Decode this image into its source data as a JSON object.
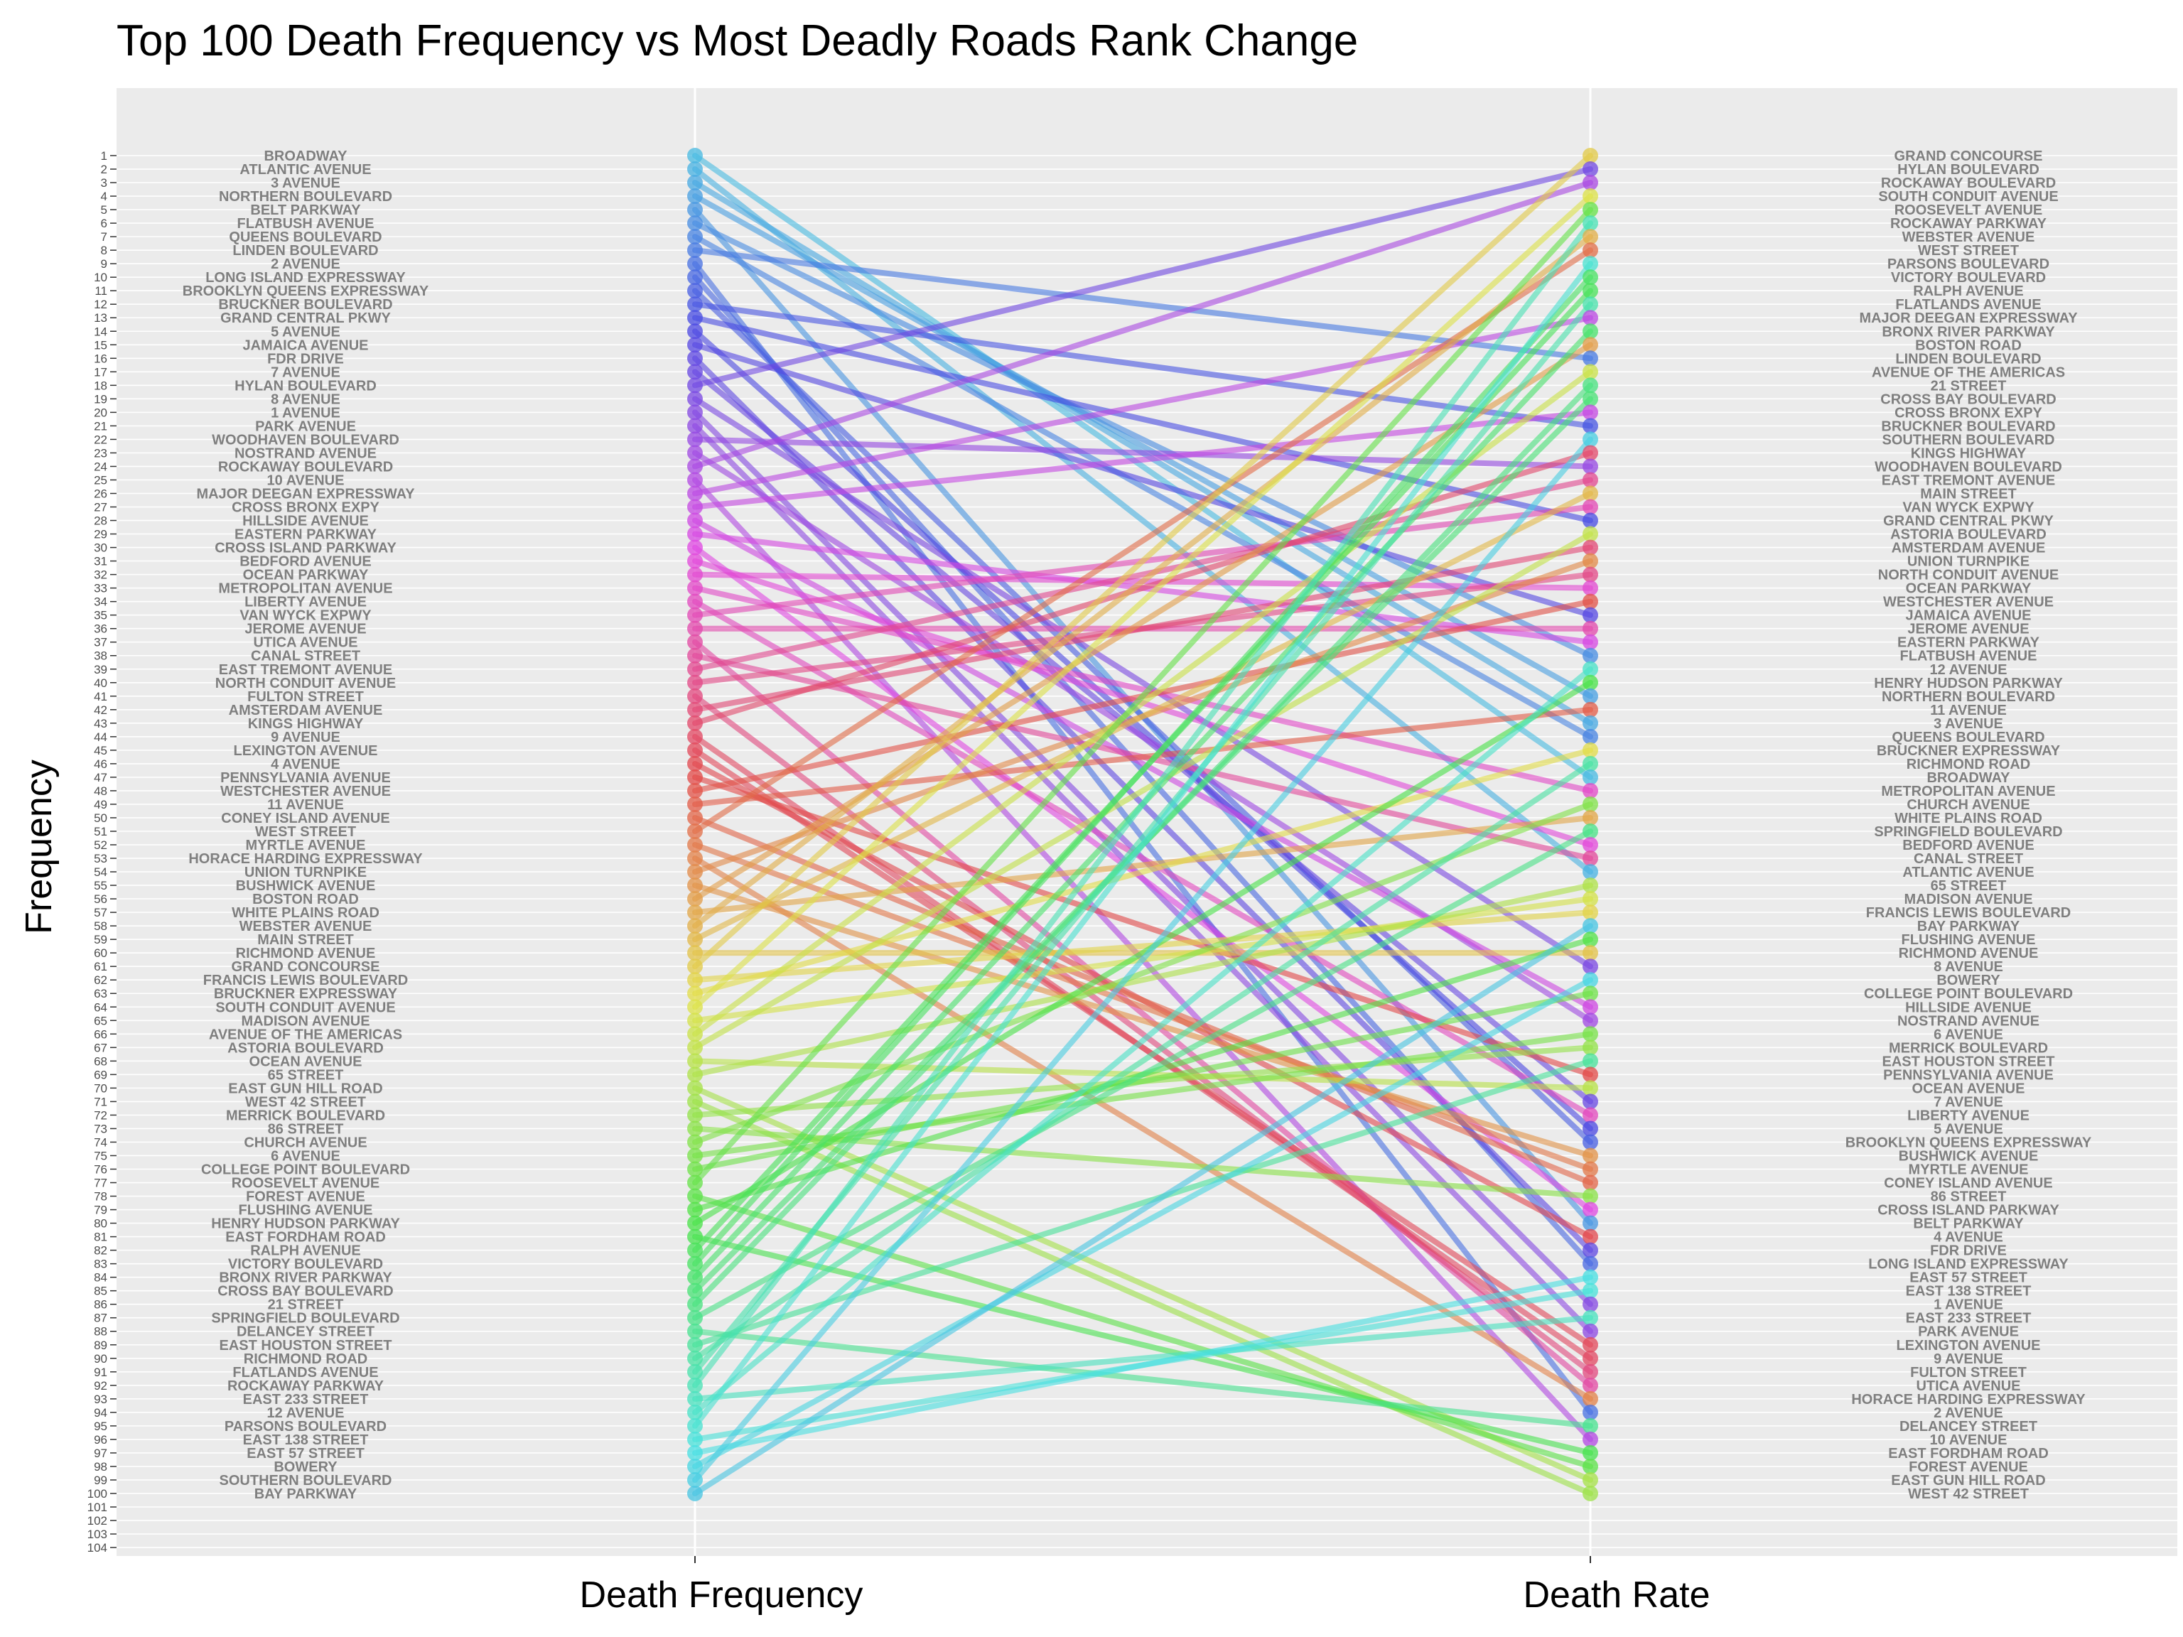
{
  "chart_data": {
    "type": "line",
    "subtype": "slopegraph",
    "title": "Top 100 Death Frequency vs Most Deadly Roads Rank Change",
    "ylabel": "Frequency",
    "categories": [
      "Death Frequency",
      "Death Rate"
    ],
    "y_ticks": [
      1,
      2,
      3,
      4,
      5,
      6,
      7,
      8,
      9,
      10,
      11,
      12,
      13,
      14,
      15,
      16,
      17,
      18,
      19,
      20,
      21,
      22,
      23,
      24,
      25,
      26,
      27,
      28,
      29,
      30,
      31,
      32,
      33,
      34,
      35,
      36,
      37,
      38,
      39,
      40,
      41,
      42,
      43,
      44,
      45,
      46,
      47,
      48,
      49,
      50,
      51,
      52,
      53,
      54,
      55,
      56,
      57,
      58,
      59,
      60,
      61,
      62,
      63,
      64,
      65,
      66,
      67,
      68,
      69,
      70,
      71,
      72,
      73,
      74,
      75,
      76,
      77,
      78,
      79,
      80,
      81,
      82,
      83,
      84,
      85,
      86,
      87,
      88,
      89,
      90,
      91,
      92,
      93,
      94,
      95,
      96,
      97,
      98,
      99,
      100,
      101,
      102,
      103,
      104
    ],
    "ylim": [
      104,
      1
    ],
    "y_reversed": true,
    "grid": true,
    "legend": "none",
    "background": "#ebebeb",
    "left_labels": [
      "BROADWAY",
      "ATLANTIC AVENUE",
      "3 AVENUE",
      "NORTHERN BOULEVARD",
      "BELT PARKWAY",
      "FLATBUSH AVENUE",
      "QUEENS BOULEVARD",
      "LINDEN BOULEVARD",
      "2 AVENUE",
      "LONG ISLAND EXPRESSWAY",
      "BROOKLYN QUEENS EXPRESSWAY",
      "BRUCKNER BOULEVARD",
      "GRAND CENTRAL PKWY",
      "5 AVENUE",
      "JAMAICA AVENUE",
      "FDR DRIVE",
      "7 AVENUE",
      "HYLAN BOULEVARD",
      "8 AVENUE",
      "1 AVENUE",
      "PARK AVENUE",
      "WOODHAVEN BOULEVARD",
      "NOSTRAND AVENUE",
      "ROCKAWAY BOULEVARD",
      "10 AVENUE",
      "MAJOR DEEGAN EXPRESSWAY",
      "CROSS BRONX EXPY",
      "HILLSIDE AVENUE",
      "EASTERN PARKWAY",
      "CROSS ISLAND PARKWAY",
      "BEDFORD AVENUE",
      "OCEAN PARKWAY",
      "METROPOLITAN AVENUE",
      "LIBERTY AVENUE",
      "VAN WYCK EXPWY",
      "JEROME AVENUE",
      "UTICA AVENUE",
      "CANAL STREET",
      "EAST TREMONT AVENUE",
      "NORTH CONDUIT AVENUE",
      "FULTON STREET",
      "AMSTERDAM AVENUE",
      "KINGS HIGHWAY",
      "9 AVENUE",
      "LEXINGTON AVENUE",
      "4 AVENUE",
      "PENNSYLVANIA AVENUE",
      "WESTCHESTER AVENUE",
      "11 AVENUE",
      "CONEY ISLAND AVENUE",
      "WEST STREET",
      "MYRTLE AVENUE",
      "HORACE HARDING EXPRESSWAY",
      "UNION TURNPIKE",
      "BUSHWICK AVENUE",
      "BOSTON ROAD",
      "WHITE PLAINS ROAD",
      "WEBSTER AVENUE",
      "MAIN STREET",
      "RICHMOND AVENUE",
      "GRAND CONCOURSE",
      "FRANCIS LEWIS BOULEVARD",
      "BRUCKNER EXPRESSWAY",
      "SOUTH CONDUIT AVENUE",
      "MADISON AVENUE",
      "AVENUE OF THE AMERICAS",
      "ASTORIA BOULEVARD",
      "OCEAN AVENUE",
      "65 STREET",
      "EAST GUN HILL ROAD",
      "WEST 42 STREET",
      "MERRICK BOULEVARD",
      "86 STREET",
      "CHURCH AVENUE",
      "6 AVENUE",
      "COLLEGE POINT BOULEVARD",
      "ROOSEVELT AVENUE",
      "FOREST AVENUE",
      "FLUSHING AVENUE",
      "HENRY HUDSON PARKWAY",
      "EAST FORDHAM ROAD",
      "RALPH AVENUE",
      "VICTORY BOULEVARD",
      "BRONX RIVER PARKWAY",
      "CROSS BAY BOULEVARD",
      "21 STREET",
      "SPRINGFIELD BOULEVARD",
      "DELANCEY STREET",
      "EAST HOUSTON STREET",
      "RICHMOND ROAD",
      "FLATLANDS AVENUE",
      "ROCKAWAY PARKWAY",
      "EAST 233 STREET",
      "12 AVENUE",
      "PARSONS BOULEVARD",
      "EAST 138 STREET",
      "EAST 57 STREET",
      "BOWERY",
      "SOUTHERN BOULEVARD",
      "BAY PARKWAY"
    ],
    "right_labels": [
      "GRAND CONCOURSE",
      "HYLAN BOULEVARD",
      "ROCKAWAY BOULEVARD",
      "SOUTH CONDUIT AVENUE",
      "ROOSEVELT AVENUE",
      "ROCKAWAY PARKWAY",
      "WEBSTER AVENUE",
      "WEST STREET",
      "PARSONS BOULEVARD",
      "VICTORY BOULEVARD",
      "RALPH AVENUE",
      "FLATLANDS AVENUE",
      "MAJOR DEEGAN EXPRESSWAY",
      "BRONX RIVER PARKWAY",
      "BOSTON ROAD",
      "LINDEN BOULEVARD",
      "AVENUE OF THE AMERICAS",
      "21 STREET",
      "CROSS BAY BOULEVARD",
      "CROSS BRONX EXPY",
      "BRUCKNER BOULEVARD",
      "SOUTHERN BOULEVARD",
      "KINGS HIGHWAY",
      "WOODHAVEN BOULEVARD",
      "EAST TREMONT AVENUE",
      "MAIN STREET",
      "VAN WYCK EXPWY",
      "GRAND CENTRAL PKWY",
      "ASTORIA BOULEVARD",
      "AMSTERDAM AVENUE",
      "UNION TURNPIKE",
      "NORTH CONDUIT AVENUE",
      "OCEAN PARKWAY",
      "WESTCHESTER AVENUE",
      "JAMAICA AVENUE",
      "JEROME AVENUE",
      "EASTERN PARKWAY",
      "FLATBUSH AVENUE",
      "12 AVENUE",
      "HENRY HUDSON PARKWAY",
      "NORTHERN BOULEVARD",
      "11 AVENUE",
      "3 AVENUE",
      "QUEENS BOULEVARD",
      "BRUCKNER EXPRESSWAY",
      "RICHMOND ROAD",
      "BROADWAY",
      "METROPOLITAN AVENUE",
      "CHURCH AVENUE",
      "WHITE PLAINS ROAD",
      "SPRINGFIELD BOULEVARD",
      "BEDFORD AVENUE",
      "CANAL STREET",
      "ATLANTIC AVENUE",
      "65 STREET",
      "MADISON AVENUE",
      "FRANCIS LEWIS BOULEVARD",
      "BAY PARKWAY",
      "FLUSHING AVENUE",
      "RICHMOND AVENUE",
      "8 AVENUE",
      "BOWERY",
      "COLLEGE POINT BOULEVARD",
      "HILLSIDE AVENUE",
      "NOSTRAND AVENUE",
      "6 AVENUE",
      "MERRICK BOULEVARD",
      "EAST HOUSTON STREET",
      "PENNSYLVANIA AVENUE",
      "OCEAN AVENUE",
      "7 AVENUE",
      "LIBERTY AVENUE",
      "5 AVENUE",
      "BROOKLYN QUEENS EXPRESSWAY",
      "BUSHWICK AVENUE",
      "MYRTLE AVENUE",
      "CONEY ISLAND AVENUE",
      "86 STREET",
      "CROSS ISLAND PARKWAY",
      "BELT PARKWAY",
      "4 AVENUE",
      "FDR DRIVE",
      "LONG ISLAND EXPRESSWAY",
      "EAST 57 STREET",
      "EAST 138 STREET",
      "1 AVENUE",
      "EAST 233 STREET",
      "PARK AVENUE",
      "LEXINGTON AVENUE",
      "9 AVENUE",
      "FULTON STREET",
      "UTICA AVENUE",
      "HORACE HARDING EXPRESSWAY",
      "2 AVENUE",
      "DELANCEY STREET",
      "10 AVENUE",
      "EAST FORDHAM ROAD",
      "FOREST AVENUE",
      "EAST GUN HILL ROAD",
      "WEST 42 STREET"
    ]
  }
}
